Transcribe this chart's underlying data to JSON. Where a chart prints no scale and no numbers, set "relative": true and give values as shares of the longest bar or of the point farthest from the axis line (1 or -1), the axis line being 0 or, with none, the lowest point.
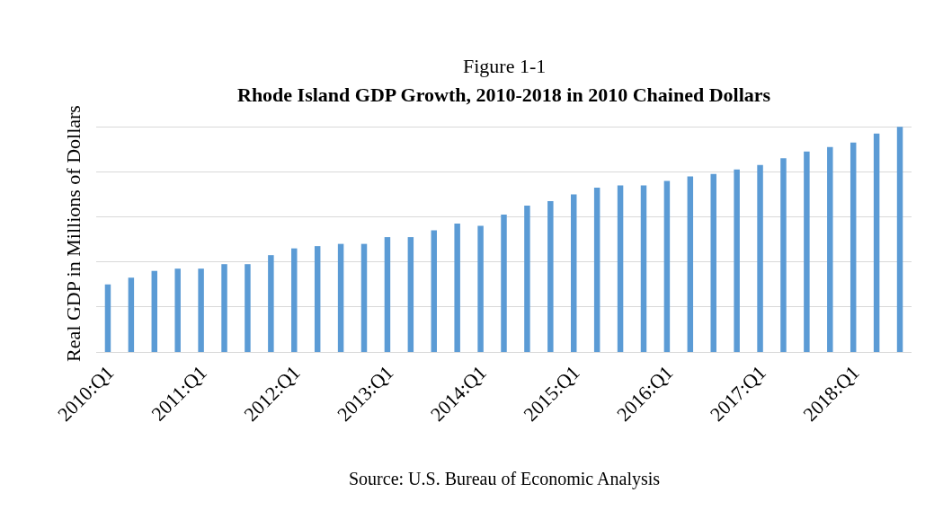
{
  "chart_data": {
    "type": "bar",
    "title": "Figure 1-1",
    "subtitle": "Rhode Island GDP Growth, 2010-2018 in 2010 Chained Dollars",
    "ylabel": "Real GDP in Millions of Dollars",
    "annotations": [
      "Source: U.S. Bureau of Economic Analysis"
    ],
    "categories": [
      "2010:Q1",
      null,
      null,
      null,
      "2011:Q1",
      null,
      null,
      null,
      "2012:Q1",
      null,
      null,
      null,
      "2013:Q1",
      null,
      null,
      null,
      "2014:Q1",
      null,
      null,
      null,
      "2015:Q1",
      null,
      null,
      null,
      "2016:Q1",
      null,
      null,
      null,
      "2017:Q1",
      null,
      null,
      null,
      "2018:Q1",
      null,
      null
    ],
    "relative": true,
    "color": "#5b9bd5",
    "grid": "y",
    "values": [
      0.3,
      0.33,
      0.36,
      0.37,
      0.37,
      0.39,
      0.39,
      0.43,
      0.46,
      0.47,
      0.48,
      0.48,
      0.51,
      0.51,
      0.54,
      0.57,
      0.56,
      0.61,
      0.65,
      0.67,
      0.7,
      0.73,
      0.74,
      0.74,
      0.76,
      0.78,
      0.79,
      0.81,
      0.83,
      0.86,
      0.89,
      0.91,
      0.93,
      0.97,
      1
    ]
  }
}
